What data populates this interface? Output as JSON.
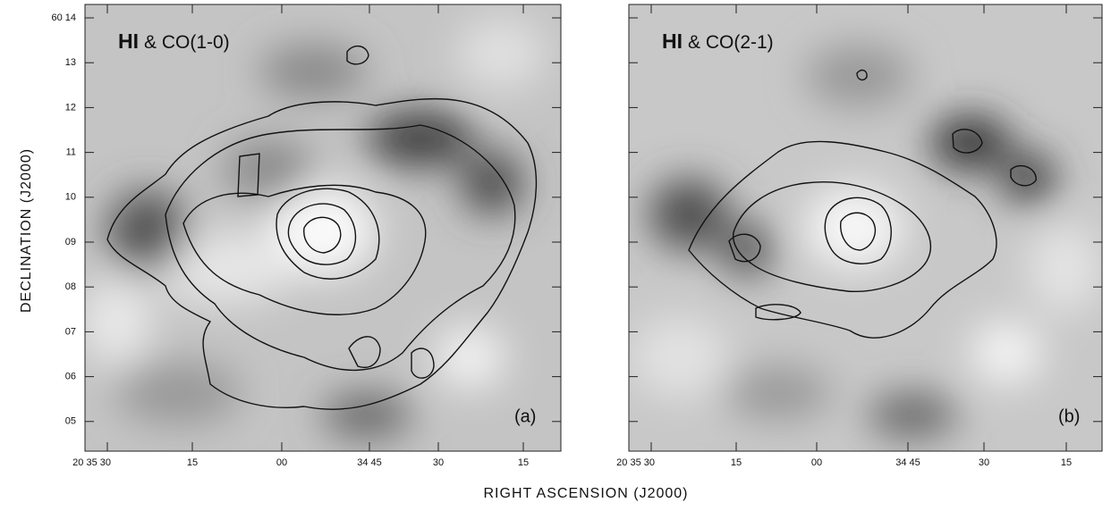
{
  "y_axis_label": "DECLINATION (J2000)",
  "x_axis_label": "RIGHT ASCENSION (J2000)",
  "y_ticks": [
    "60 14",
    "13",
    "12",
    "11",
    "10",
    "09",
    "08",
    "07",
    "06",
    "05"
  ],
  "panels": [
    {
      "title_main": "HI",
      "title_rest": "& CO(1-0)",
      "label": "(a)",
      "x_ticks": [
        "20 35 30",
        "15",
        "00",
        "34 45",
        "30",
        "15"
      ]
    },
    {
      "title_main": "HI",
      "title_rest": "& CO(2-1)",
      "label": "(b)",
      "x_ticks": [
        "20 35 30",
        "15",
        "00",
        "34 45",
        "30",
        "15"
      ]
    }
  ]
}
